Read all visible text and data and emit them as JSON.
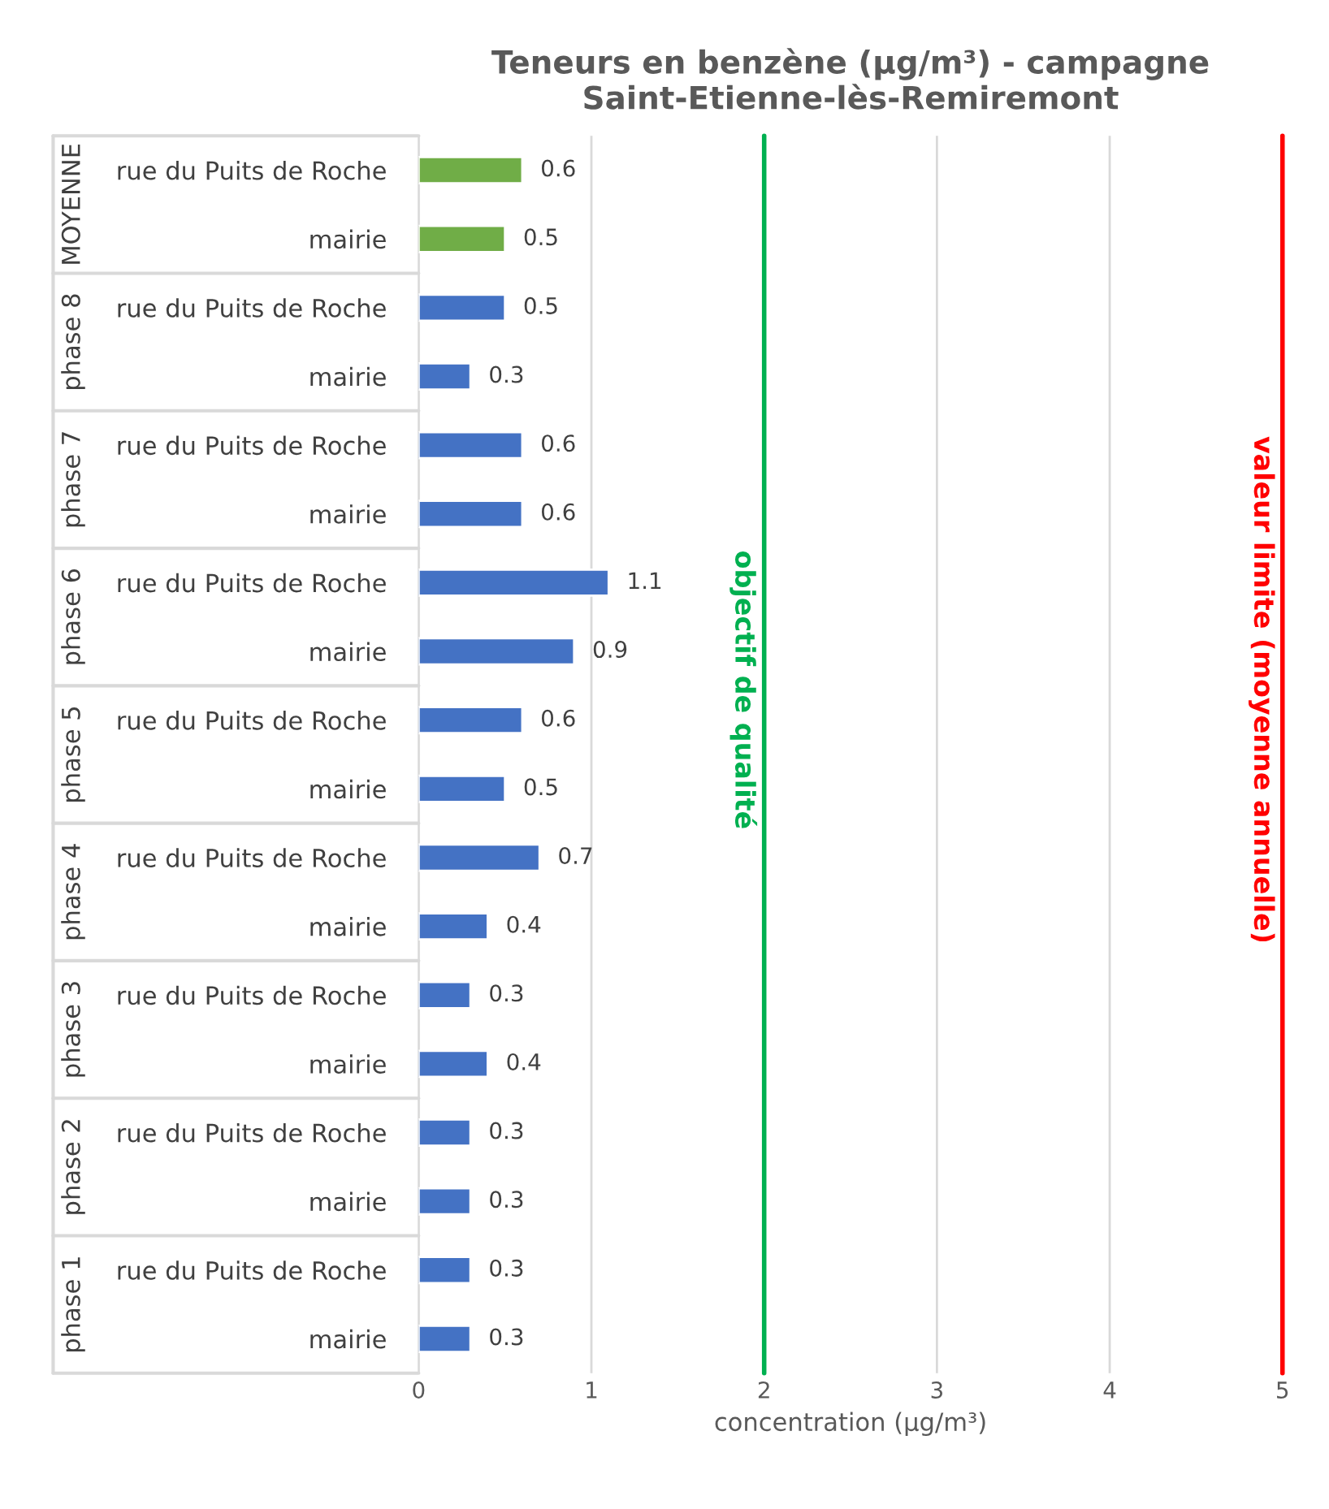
{
  "chart_data": {
    "type": "bar",
    "orientation": "horizontal",
    "title": "Teneurs en benzène (µg/m³) - campagne Saint-Etienne-lès-Remiremont",
    "xlabel": "concentration (µg/m³)",
    "categories": [
      "rue du Puits de Roche",
      "mairie",
      "rue du Puits de Roche",
      "mairie",
      "rue du Puits de Roche",
      "mairie",
      "rue du Puits de Roche",
      "mairie",
      "rue du Puits de Roche",
      "mairie",
      "rue du Puits de Roche",
      "mairie",
      "rue du Puits de Roche",
      "mairie",
      "rue du Puits de Roche",
      "mairie",
      "rue du Puits de Roche",
      "mairie"
    ],
    "values": [
      0.6,
      0.5,
      0.5,
      0.3,
      0.6,
      0.6,
      1.1,
      0.9,
      0.6,
      0.5,
      0.7,
      0.4,
      0.3,
      0.4,
      0.3,
      0.3,
      0.3,
      0.3
    ],
    "colors": [
      "#70ad47",
      "#70ad47",
      "#4472c4",
      "#4472c4",
      "#4472c4",
      "#4472c4",
      "#4472c4",
      "#4472c4",
      "#4472c4",
      "#4472c4",
      "#4472c4",
      "#4472c4",
      "#4472c4",
      "#4472c4",
      "#4472c4",
      "#4472c4",
      "#4472c4",
      "#4472c4"
    ],
    "annotations": [
      "MOYENNE",
      "phase 8",
      "phase 7",
      "phase 6",
      "phase 5",
      "phase 4",
      "phase 3",
      "phase 2",
      "phase 1"
    ],
    "data_labels": true,
    "xlim": [
      0,
      5
    ],
    "xticks": [
      0,
      1,
      2,
      3,
      4,
      5
    ],
    "grid": "x",
    "ref_lines": [
      {
        "axis": "x",
        "value": 2,
        "label": "objectif de qualité",
        "color": "#00b050"
      },
      {
        "axis": "x",
        "value": 5,
        "label": "valeur limite (moyenne annuelle)",
        "color": "#ff0000"
      }
    ]
  }
}
